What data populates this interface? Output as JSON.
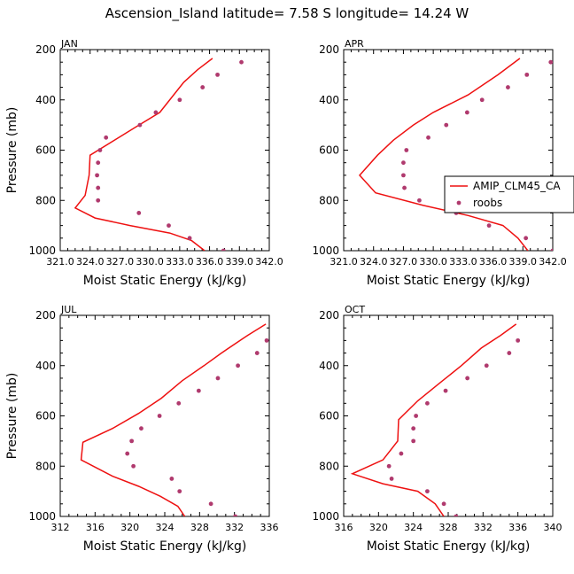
{
  "figure": {
    "title": "Ascension_Island  latitude= 7.58 S longitude= 14.24 W"
  },
  "colors": {
    "model": "#ee1111",
    "obs": "#b03a6e",
    "axis": "#000000"
  },
  "legend": {
    "model_label": "AMIP_CLM45_CA",
    "obs_label": "roobs"
  },
  "chart_data": [
    {
      "type": "line",
      "panel": "JAN",
      "xlabel": "Moist Static Energy (kJ/kg)",
      "ylabel": "Pressure (mb)",
      "xlim": [
        321.0,
        342.0
      ],
      "ylim": [
        1000,
        200
      ],
      "xticks": [
        321.0,
        324.0,
        327.0,
        330.0,
        333.0,
        336.0,
        339.0,
        342.0
      ],
      "xtick_labels": [
        "321.0",
        "324.0",
        "327.0",
        "330.0",
        "333.0",
        "336.0",
        "339.0",
        "342.0"
      ],
      "yticks": [
        200,
        400,
        600,
        800,
        1000
      ],
      "series": [
        {
          "name": "AMIP_CLM45_CA",
          "style": "line",
          "points": [
            [
              336.3,
              235
            ],
            [
              334.8,
              280
            ],
            [
              333.4,
              330
            ],
            [
              332.2,
              390
            ],
            [
              331.0,
              450
            ],
            [
              328.5,
              510
            ],
            [
              324.0,
              620
            ],
            [
              323.9,
              700
            ],
            [
              323.5,
              780
            ],
            [
              322.5,
              830
            ],
            [
              324.5,
              870
            ],
            [
              328.0,
              900
            ],
            [
              332.0,
              930
            ],
            [
              334.2,
              960
            ],
            [
              335.5,
              1000
            ]
          ]
        },
        {
          "name": "roobs",
          "style": "markers",
          "points": [
            [
              339.2,
              250
            ],
            [
              336.8,
              300
            ],
            [
              335.3,
              350
            ],
            [
              333.0,
              400
            ],
            [
              330.6,
              450
            ],
            [
              329.0,
              500
            ],
            [
              325.6,
              550
            ],
            [
              325.0,
              600
            ],
            [
              324.8,
              650
            ],
            [
              324.7,
              700
            ],
            [
              324.8,
              750
            ],
            [
              324.8,
              800
            ],
            [
              328.9,
              850
            ],
            [
              331.9,
              900
            ],
            [
              334.0,
              950
            ],
            [
              337.4,
              1000
            ]
          ]
        }
      ]
    },
    {
      "type": "line",
      "panel": "APR",
      "xlabel": "Moist Static Energy (kJ/kg)",
      "ylabel": "",
      "xlim": [
        321.0,
        342.0
      ],
      "ylim": [
        1000,
        200
      ],
      "xticks": [
        321.0,
        324.0,
        327.0,
        330.0,
        333.0,
        336.0,
        339.0,
        342.0
      ],
      "xtick_labels": [
        "321.0",
        "324.0",
        "327.0",
        "330.0",
        "333.0",
        "336.0",
        "339.0",
        "342.0"
      ],
      "yticks": [
        200,
        400,
        600,
        800,
        1000
      ],
      "legend_position": "right",
      "series": [
        {
          "name": "AMIP_CLM45_CA",
          "style": "line",
          "points": [
            [
              338.7,
              235
            ],
            [
              336.5,
              300
            ],
            [
              333.5,
              380
            ],
            [
              330.0,
              450
            ],
            [
              328.0,
              500
            ],
            [
              326.0,
              560
            ],
            [
              324.4,
              620
            ],
            [
              322.6,
              700
            ],
            [
              324.2,
              770
            ],
            [
              329.0,
              820
            ],
            [
              333.5,
              860
            ],
            [
              337.0,
              900
            ],
            [
              338.5,
              950
            ],
            [
              339.5,
              1000
            ]
          ]
        },
        {
          "name": "roobs",
          "style": "markers",
          "points": [
            [
              341.8,
              250
            ],
            [
              339.4,
              300
            ],
            [
              337.5,
              350
            ],
            [
              334.9,
              400
            ],
            [
              333.4,
              450
            ],
            [
              331.3,
              500
            ],
            [
              329.5,
              550
            ],
            [
              327.3,
              600
            ],
            [
              327.0,
              650
            ],
            [
              327.0,
              700
            ],
            [
              327.1,
              750
            ],
            [
              328.6,
              800
            ],
            [
              332.3,
              850
            ],
            [
              335.6,
              900
            ],
            [
              339.3,
              950
            ],
            [
              342.0,
              1000
            ]
          ]
        }
      ]
    },
    {
      "type": "line",
      "panel": "JUL",
      "xlabel": "Moist Static Energy (kJ/kg)",
      "ylabel": "Pressure (mb)",
      "xlim": [
        312,
        336
      ],
      "ylim": [
        1000,
        200
      ],
      "xticks": [
        312,
        316,
        320,
        324,
        328,
        332,
        336
      ],
      "xtick_labels": [
        "312",
        "316",
        "320",
        "324",
        "328",
        "332",
        "336"
      ],
      "yticks": [
        200,
        400,
        600,
        800,
        1000
      ],
      "series": [
        {
          "name": "AMIP_CLM45_CA",
          "style": "line",
          "points": [
            [
              335.6,
              235
            ],
            [
              333.5,
              280
            ],
            [
              330.5,
              350
            ],
            [
              328.5,
              400
            ],
            [
              326.0,
              460
            ],
            [
              323.6,
              530
            ],
            [
              321.0,
              590
            ],
            [
              318.0,
              650
            ],
            [
              314.6,
              705
            ],
            [
              314.4,
              775
            ],
            [
              318.0,
              840
            ],
            [
              321.0,
              880
            ],
            [
              323.5,
              920
            ],
            [
              325.5,
              960
            ],
            [
              326.3,
              1000
            ]
          ]
        },
        {
          "name": "roobs",
          "style": "markers",
          "points": [
            [
              335.7,
              300
            ],
            [
              334.6,
              350
            ],
            [
              332.4,
              400
            ],
            [
              330.1,
              450
            ],
            [
              327.9,
              500
            ],
            [
              325.6,
              550
            ],
            [
              323.4,
              600
            ],
            [
              321.3,
              650
            ],
            [
              320.2,
              700
            ],
            [
              319.7,
              750
            ],
            [
              320.4,
              800
            ],
            [
              324.8,
              850
            ],
            [
              325.7,
              900
            ],
            [
              329.3,
              950
            ],
            [
              332.1,
              1000
            ]
          ]
        }
      ]
    },
    {
      "type": "line",
      "panel": "OCT",
      "xlabel": "Moist Static Energy (kJ/kg)",
      "ylabel": "",
      "xlim": [
        316,
        340
      ],
      "ylim": [
        1000,
        200
      ],
      "xticks": [
        316,
        320,
        324,
        328,
        332,
        336,
        340
      ],
      "xtick_labels": [
        "316",
        "320",
        "324",
        "328",
        "332",
        "336",
        "340"
      ],
      "yticks": [
        200,
        400,
        600,
        800,
        1000
      ],
      "series": [
        {
          "name": "AMIP_CLM45_CA",
          "style": "line",
          "points": [
            [
              335.8,
              235
            ],
            [
              334.0,
              280
            ],
            [
              331.8,
              330
            ],
            [
              329.5,
              400
            ],
            [
              327.0,
              470
            ],
            [
              324.5,
              540
            ],
            [
              322.3,
              615
            ],
            [
              322.2,
              700
            ],
            [
              320.5,
              775
            ],
            [
              317.0,
              830
            ],
            [
              320.5,
              870
            ],
            [
              324.5,
              900
            ],
            [
              326.5,
              950
            ],
            [
              327.5,
              1000
            ]
          ]
        },
        {
          "name": "roobs",
          "style": "markers",
          "points": [
            [
              336.0,
              300
            ],
            [
              335.0,
              350
            ],
            [
              332.4,
              400
            ],
            [
              330.2,
              450
            ],
            [
              327.7,
              500
            ],
            [
              325.6,
              550
            ],
            [
              324.3,
              600
            ],
            [
              324.0,
              650
            ],
            [
              324.0,
              700
            ],
            [
              322.6,
              750
            ],
            [
              321.2,
              800
            ],
            [
              321.5,
              850
            ],
            [
              325.6,
              900
            ],
            [
              327.5,
              950
            ],
            [
              328.9,
              1000
            ]
          ]
        }
      ]
    }
  ]
}
